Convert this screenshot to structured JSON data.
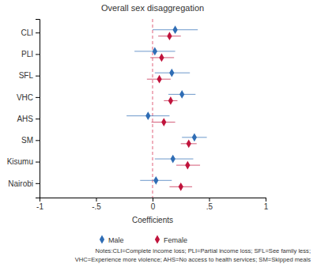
{
  "chart_data": {
    "type": "coefficient",
    "orientation": "horizontal",
    "title": "Overall sex disaggregation",
    "x_label": "Coefficients",
    "categories": [
      "CLI",
      "PLI",
      "SFL",
      "VHC",
      "AHS",
      "SM",
      "Kisumu",
      "Nairobi"
    ],
    "series": [
      {
        "name": "Male",
        "color": "#2f6db5",
        "marker": "diamond",
        "values": [
          0.2,
          0.02,
          0.17,
          0.26,
          -0.04,
          0.37,
          0.18,
          0.03
        ],
        "lower": [
          0.0,
          -0.16,
          0.02,
          0.14,
          -0.23,
          0.26,
          0.02,
          -0.11
        ],
        "upper": [
          0.4,
          0.2,
          0.33,
          0.38,
          0.15,
          0.48,
          0.36,
          0.17
        ]
      },
      {
        "name": "Female",
        "color": "#c0143c",
        "marker": "diamond",
        "values": [
          0.15,
          0.08,
          0.06,
          0.16,
          0.1,
          0.32,
          0.31,
          0.25
        ],
        "lower": [
          0.05,
          -0.02,
          -0.05,
          0.1,
          -0.01,
          0.25,
          0.21,
          0.15
        ],
        "upper": [
          0.25,
          0.19,
          0.16,
          0.22,
          0.2,
          0.39,
          0.42,
          0.35
        ]
      }
    ],
    "xlim": [
      -1,
      1
    ],
    "xticks": [
      -1,
      {
        "value": -0.5,
        "label": "-.5"
      },
      0,
      {
        "value": 0.5,
        "label": ".5"
      },
      1
    ],
    "reference_line": 0,
    "legend": "bottom",
    "annotations": [
      "Notes:CLI=Complete income loss; PLI=Partial income loss; SFL=See family less;",
      "VHC=Experience more violence; AHS=No access to health services; SM=Skipped meals"
    ]
  }
}
